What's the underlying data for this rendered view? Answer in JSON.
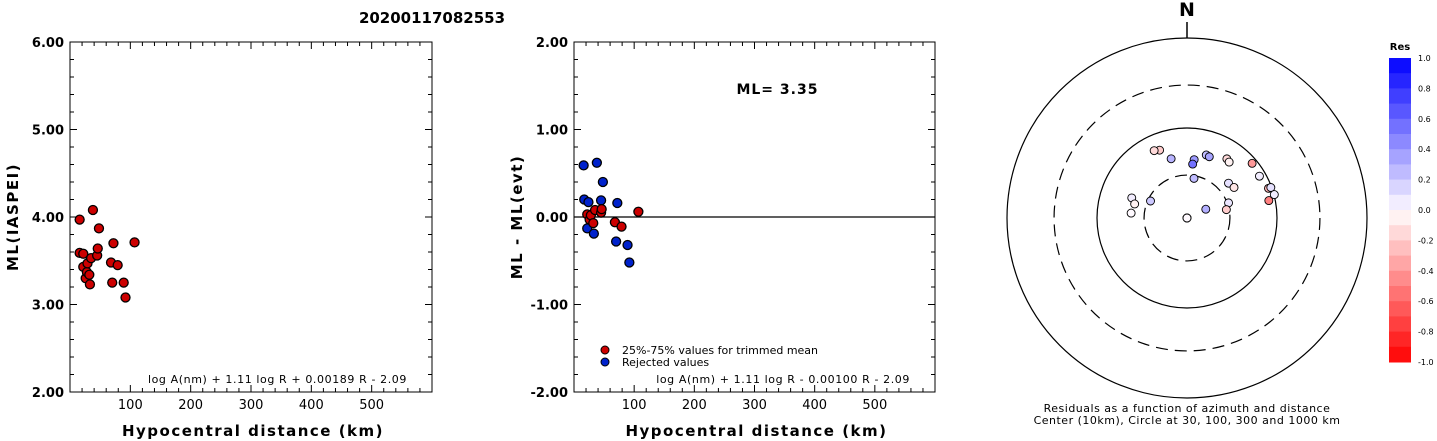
{
  "title": "20200117082553",
  "chart_data": [
    {
      "type": "scatter",
      "xlabel": "Hypocentral distance (km)",
      "ylabel": "ML(IASPEI)",
      "xlim": [
        0,
        600
      ],
      "ylim": [
        2.0,
        6.0
      ],
      "xticks": [
        100,
        200,
        300,
        400,
        500
      ],
      "xtick_labels": [
        "100",
        "200",
        "300",
        "400",
        "500"
      ],
      "yticks": [
        2.0,
        3.0,
        4.0,
        5.0,
        6.0
      ],
      "ytick_labels": [
        "2.00",
        "3.00",
        "4.00",
        "5.00",
        "6.00"
      ],
      "formula": "log A(nm) + 1.11 log R + 0.00189 R - 2.09",
      "points": [
        {
          "x": 16,
          "y": 3.97,
          "color": "#cc0000"
        },
        {
          "x": 16,
          "y": 3.59,
          "color": "#cc0000"
        },
        {
          "x": 22,
          "y": 3.58,
          "color": "#cc0000"
        },
        {
          "x": 22,
          "y": 3.43,
          "color": "#cc0000"
        },
        {
          "x": 26,
          "y": 3.3,
          "color": "#cc0000"
        },
        {
          "x": 28,
          "y": 3.37,
          "color": "#cc0000"
        },
        {
          "x": 29,
          "y": 3.47,
          "color": "#cc0000"
        },
        {
          "x": 32,
          "y": 3.34,
          "color": "#cc0000"
        },
        {
          "x": 33,
          "y": 3.23,
          "color": "#cc0000"
        },
        {
          "x": 35,
          "y": 3.53,
          "color": "#cc0000"
        },
        {
          "x": 38,
          "y": 4.08,
          "color": "#cc0000"
        },
        {
          "x": 45,
          "y": 3.56,
          "color": "#cc0000"
        },
        {
          "x": 46,
          "y": 3.64,
          "color": "#cc0000"
        },
        {
          "x": 48,
          "y": 3.87,
          "color": "#cc0000"
        },
        {
          "x": 68,
          "y": 3.48,
          "color": "#cc0000"
        },
        {
          "x": 70,
          "y": 3.25,
          "color": "#cc0000"
        },
        {
          "x": 72,
          "y": 3.7,
          "color": "#cc0000"
        },
        {
          "x": 79,
          "y": 3.45,
          "color": "#cc0000"
        },
        {
          "x": 89,
          "y": 3.25,
          "color": "#cc0000"
        },
        {
          "x": 92,
          "y": 3.08,
          "color": "#cc0000"
        },
        {
          "x": 107,
          "y": 3.71,
          "color": "#cc0000"
        }
      ]
    },
    {
      "type": "scatter",
      "xlabel": "Hypocentral distance (km)",
      "ylabel": "ML - ML(evt)",
      "xlim": [
        0,
        600
      ],
      "ylim": [
        -2.0,
        2.0
      ],
      "xticks": [
        100,
        200,
        300,
        400,
        500
      ],
      "xtick_labels": [
        "100",
        "200",
        "300",
        "400",
        "500"
      ],
      "yticks": [
        -2.0,
        -1.0,
        0.0,
        1.0,
        2.0
      ],
      "ytick_labels": [
        "-2.00",
        "-1.00",
        "0.00",
        "1.00",
        "2.00"
      ],
      "reference_line_y": 0.0,
      "annotation": "ML= 3.35",
      "formula": "log A(nm) + 1.11 log R - 0.00100 R - 2.09",
      "legend": [
        {
          "label": "25%-75% values for trimmed mean",
          "color": "#cc0000"
        },
        {
          "label": "Rejected values",
          "color": "#0022cc"
        }
      ],
      "points": [
        {
          "x": 16,
          "y": 0.59,
          "color": "#0022cc"
        },
        {
          "x": 38,
          "y": 0.62,
          "color": "#0022cc"
        },
        {
          "x": 48,
          "y": 0.4,
          "color": "#0022cc"
        },
        {
          "x": 17,
          "y": 0.2,
          "color": "#0022cc"
        },
        {
          "x": 24,
          "y": 0.17,
          "color": "#0022cc"
        },
        {
          "x": 45,
          "y": 0.19,
          "color": "#0022cc"
        },
        {
          "x": 72,
          "y": 0.16,
          "color": "#0022cc"
        },
        {
          "x": 22,
          "y": -0.13,
          "color": "#0022cc"
        },
        {
          "x": 33,
          "y": -0.19,
          "color": "#0022cc"
        },
        {
          "x": 70,
          "y": -0.28,
          "color": "#0022cc"
        },
        {
          "x": 89,
          "y": -0.32,
          "color": "#0022cc"
        },
        {
          "x": 92,
          "y": -0.52,
          "color": "#0022cc"
        },
        {
          "x": 22,
          "y": 0.03,
          "color": "#cc0000"
        },
        {
          "x": 26,
          "y": -0.03,
          "color": "#cc0000"
        },
        {
          "x": 28,
          "y": 0.02,
          "color": "#cc0000"
        },
        {
          "x": 32,
          "y": -0.07,
          "color": "#cc0000"
        },
        {
          "x": 35,
          "y": 0.08,
          "color": "#cc0000"
        },
        {
          "x": 45,
          "y": 0.05,
          "color": "#cc0000"
        },
        {
          "x": 46,
          "y": 0.09,
          "color": "#cc0000"
        },
        {
          "x": 68,
          "y": -0.06,
          "color": "#cc0000"
        },
        {
          "x": 79,
          "y": -0.11,
          "color": "#cc0000"
        },
        {
          "x": 107,
          "y": 0.06,
          "color": "#cc0000"
        }
      ]
    },
    {
      "type": "scatter",
      "subtype": "polar",
      "north_label": "N",
      "caption_line1": "Residuals as a function of azimuth and distance",
      "caption_line2": "Center (10km), Circle at 30, 100, 300 and 1000 km",
      "rings": [
        {
          "distance_km": 30,
          "style": "dashed"
        },
        {
          "distance_km": 100,
          "style": "solid"
        },
        {
          "distance_km": 300,
          "style": "dashed"
        },
        {
          "distance_km": 1000,
          "style": "solid"
        }
      ],
      "colorbar": {
        "title": "Res",
        "range": [
          -1.0,
          1.0
        ],
        "tick_values": [
          1.0,
          0.8,
          0.6,
          0.4,
          0.2,
          0.0,
          -0.2,
          -0.4,
          -0.6,
          -0.8,
          -1.0
        ],
        "tick_labels": [
          "1.0",
          "0.8",
          "0.6",
          "0.4",
          "0.2",
          "0.0",
          "-0.2",
          "-0.4",
          "-0.6",
          "-0.8",
          "-1.0"
        ],
        "positive_color": "#0011ff",
        "negative_color": "#ff0000"
      },
      "points": [
        {
          "azimuth_deg": 345,
          "distance_km": 48,
          "residual": 0.28
        },
        {
          "azimuth_deg": 338,
          "distance_km": 65,
          "residual": -0.2
        },
        {
          "azimuth_deg": 334,
          "distance_km": 68,
          "residual": -0.15
        },
        {
          "azimuth_deg": 7,
          "distance_km": 45,
          "residual": 0.38
        },
        {
          "azimuth_deg": 6,
          "distance_km": 40,
          "residual": 0.55
        },
        {
          "azimuth_deg": 17,
          "distance_km": 54,
          "residual": 0.25
        },
        {
          "azimuth_deg": 20,
          "distance_km": 53,
          "residual": 0.35
        },
        {
          "azimuth_deg": 34,
          "distance_km": 62,
          "residual": -0.15
        },
        {
          "azimuth_deg": 37,
          "distance_km": 60,
          "residual": -0.05
        },
        {
          "azimuth_deg": 50,
          "distance_km": 88,
          "residual": -0.4
        },
        {
          "azimuth_deg": 60,
          "distance_km": 85,
          "residual": 0.05
        },
        {
          "azimuth_deg": 70,
          "distance_km": 92,
          "residual": -0.3
        },
        {
          "azimuth_deg": 70,
          "distance_km": 98,
          "residual": 0.1
        },
        {
          "azimuth_deg": 75,
          "distance_km": 101,
          "residual": 0.05
        },
        {
          "azimuth_deg": 78,
          "distance_km": 85,
          "residual": -0.5
        },
        {
          "azimuth_deg": 50,
          "distance_km": 40,
          "residual": 0.1
        },
        {
          "azimuth_deg": 57,
          "distance_km": 42,
          "residual": -0.1
        },
        {
          "azimuth_deg": 70,
          "distance_km": 31,
          "residual": 0.08
        },
        {
          "azimuth_deg": 78,
          "distance_km": 28,
          "residual": -0.2
        },
        {
          "azimuth_deg": 65,
          "distance_km": 17,
          "residual": 0.3
        },
        {
          "azimuth_deg": 120,
          "distance_km": 9,
          "residual": 0.12
        },
        {
          "azimuth_deg": 40,
          "distance_km": 8,
          "residual": 0.5
        },
        {
          "azimuth_deg": 10,
          "distance_km": 28,
          "residual": 0.25
        },
        {
          "azimuth_deg": 310,
          "distance_km": 8,
          "residual": 0.0
        },
        {
          "azimuth_deg": 290,
          "distance_km": 45,
          "residual": 0.05
        },
        {
          "azimuth_deg": 285,
          "distance_km": 40,
          "residual": -0.05
        },
        {
          "azimuth_deg": 275,
          "distance_km": 42,
          "residual": 0.0
        },
        {
          "azimuth_deg": 295,
          "distance_km": 28,
          "residual": 0.2
        }
      ]
    }
  ]
}
